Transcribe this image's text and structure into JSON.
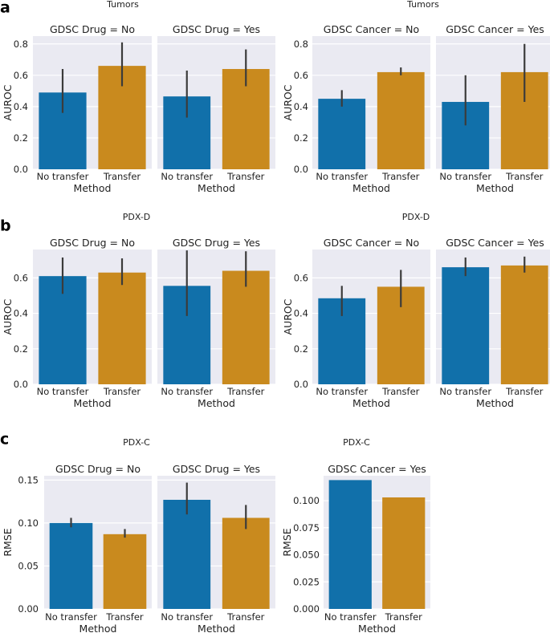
{
  "colors": {
    "no_transfer": "#1170aa",
    "transfer": "#c98a1e",
    "background": "#eaeaf2",
    "grid": "#ffffff",
    "errorbar": "#3b3b3b"
  },
  "chart_data": [
    {
      "panel": "a",
      "suptitle": "Tumors",
      "type": "bar",
      "xlabel": "Method",
      "ylabel": "AUROC",
      "ylim": [
        0,
        0.85
      ],
      "yticks": [
        "0.0",
        "0.2",
        "0.4",
        "0.6",
        "0.8"
      ],
      "categories": [
        "No transfer",
        "Transfer"
      ],
      "facets": [
        {
          "title": "GDSC Drug = No",
          "values": [
            0.49,
            0.66
          ],
          "err_low": [
            0.36,
            0.53
          ],
          "err_high": [
            0.64,
            0.81
          ]
        },
        {
          "title": "GDSC Drug = Yes",
          "values": [
            0.465,
            0.64
          ],
          "err_low": [
            0.33,
            0.53
          ],
          "err_high": [
            0.63,
            0.765
          ]
        }
      ]
    },
    {
      "panel": "",
      "suptitle": "Tumors",
      "type": "bar",
      "xlabel": "Method",
      "ylabel": "AUROC",
      "ylim": [
        0,
        0.85
      ],
      "yticks": [
        "0.0",
        "0.2",
        "0.4",
        "0.6",
        "0.8"
      ],
      "categories": [
        "No transfer",
        "Transfer"
      ],
      "facets": [
        {
          "title": "GDSC Cancer = No",
          "values": [
            0.45,
            0.62
          ],
          "err_low": [
            0.4,
            0.6
          ],
          "err_high": [
            0.505,
            0.65
          ]
        },
        {
          "title": "GDSC Cancer = Yes",
          "values": [
            0.43,
            0.62
          ],
          "err_low": [
            0.28,
            0.43
          ],
          "err_high": [
            0.6,
            0.8
          ]
        }
      ]
    },
    {
      "panel": "b",
      "suptitle": "PDX-D",
      "type": "bar",
      "xlabel": "Method",
      "ylabel": "AUROC",
      "ylim": [
        0,
        0.76
      ],
      "yticks": [
        "0.0",
        "0.2",
        "0.4",
        "0.6"
      ],
      "categories": [
        "No transfer",
        "Transfer"
      ],
      "facets": [
        {
          "title": "GDSC Drug = No",
          "values": [
            0.61,
            0.63
          ],
          "err_low": [
            0.51,
            0.56
          ],
          "err_high": [
            0.715,
            0.71
          ]
        },
        {
          "title": "GDSC Drug = Yes",
          "values": [
            0.555,
            0.64
          ],
          "err_low": [
            0.385,
            0.55
          ],
          "err_high": [
            0.755,
            0.75
          ]
        }
      ]
    },
    {
      "panel": "",
      "suptitle": "PDX-D",
      "type": "bar",
      "xlabel": "Method",
      "ylabel": "AUROC",
      "ylim": [
        0,
        0.76
      ],
      "yticks": [
        "0.0",
        "0.2",
        "0.4",
        "0.6"
      ],
      "categories": [
        "No transfer",
        "Transfer"
      ],
      "facets": [
        {
          "title": "GDSC Cancer = No",
          "values": [
            0.485,
            0.55
          ],
          "err_low": [
            0.385,
            0.435
          ],
          "err_high": [
            0.555,
            0.645
          ]
        },
        {
          "title": "GDSC Cancer = Yes",
          "values": [
            0.66,
            0.67
          ],
          "err_low": [
            0.61,
            0.63
          ],
          "err_high": [
            0.715,
            0.72
          ]
        }
      ]
    },
    {
      "panel": "c",
      "suptitle": "PDX-C",
      "type": "bar",
      "xlabel": "Method",
      "ylabel": "RMSE",
      "ylim": [
        0,
        0.155
      ],
      "yticks": [
        "0.00",
        "0.05",
        "0.10",
        "0.15"
      ],
      "categories": [
        "No transfer",
        "Transfer"
      ],
      "facets": [
        {
          "title": "GDSC Drug = No",
          "values": [
            0.1,
            0.087
          ],
          "err_low": [
            0.095,
            0.083
          ],
          "err_high": [
            0.106,
            0.093
          ]
        },
        {
          "title": "GDSC Drug = Yes",
          "values": [
            0.127,
            0.106
          ],
          "err_low": [
            0.11,
            0.093
          ],
          "err_high": [
            0.147,
            0.121
          ]
        }
      ]
    },
    {
      "panel": "",
      "suptitle": "PDX-C",
      "type": "bar",
      "xlabel": "Method",
      "ylabel": "RMSE",
      "ylim": [
        0,
        0.123
      ],
      "yticks": [
        "0.000",
        "0.025",
        "0.050",
        "0.075",
        "0.100"
      ],
      "categories": [
        "No transfer",
        "Transfer"
      ],
      "facets": [
        {
          "title": "GDSC Cancer = Yes",
          "values": [
            0.119,
            0.103
          ]
        }
      ]
    }
  ]
}
